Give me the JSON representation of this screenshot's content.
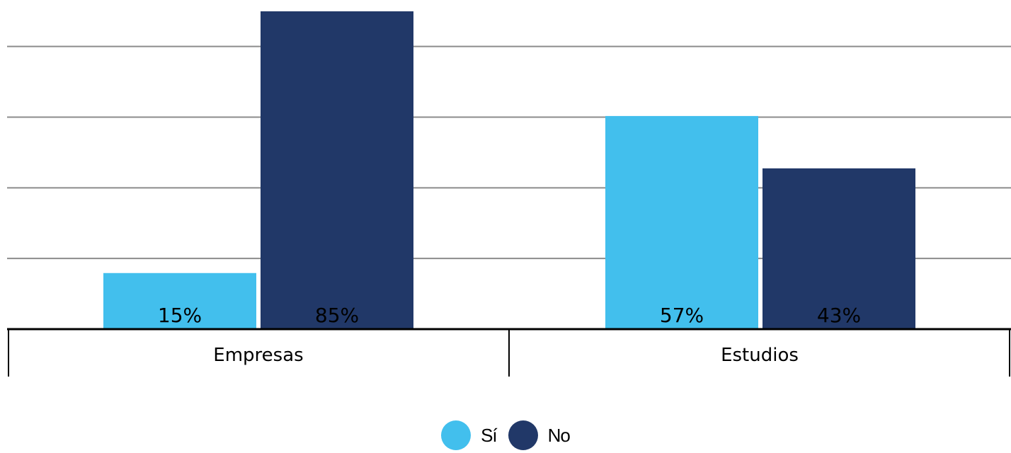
{
  "chart_data": {
    "type": "bar",
    "categories": [
      "Empresas",
      "Estudios"
    ],
    "series": [
      {
        "name": "Sí",
        "values": [
          15,
          57
        ],
        "labels": [
          "15%",
          "57%"
        ],
        "color": "#42bfed"
      },
      {
        "name": "No",
        "values": [
          85,
          43
        ],
        "labels": [
          "85%",
          "43%"
        ],
        "color": "#213868"
      }
    ],
    "ylim": [
      0,
      85
    ],
    "grid": true,
    "legend_position": "bottom-center"
  }
}
